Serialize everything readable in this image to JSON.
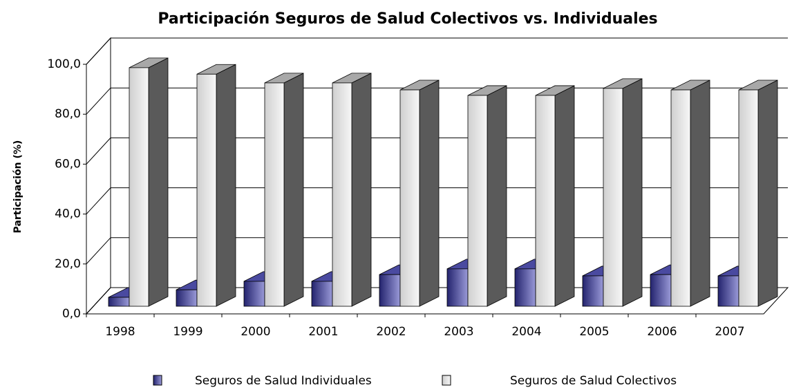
{
  "chart_data": {
    "type": "bar3d",
    "title": "Participación Seguros de Salud Colectivos vs. Individuales",
    "y_label": "Participación (%)",
    "categories": [
      "1998",
      "1999",
      "2000",
      "2001",
      "2002",
      "2003",
      "2004",
      "2005",
      "2006",
      "2007"
    ],
    "series": [
      {
        "name": "Seguros de Salud Individuales",
        "color": "#5a5ab0",
        "values": [
          3.6,
          6.6,
          10,
          10,
          12.7,
          15,
          15,
          12.2,
          12.7,
          12.2
        ]
      },
      {
        "name": "Seguros de Salud Colectivos",
        "color": "#e6e6e6",
        "values": [
          95.6,
          93,
          89.5,
          89.5,
          86.7,
          84.5,
          84.5,
          87.3,
          86.7,
          86.7
        ]
      }
    ],
    "ylim": [
      0,
      100
    ],
    "yticks": [
      {
        "value": 0,
        "label": "0,0"
      },
      {
        "value": 20,
        "label": "20,0"
      },
      {
        "value": 40,
        "label": "40,0"
      },
      {
        "value": 60,
        "label": "60,0"
      },
      {
        "value": 80,
        "label": "80,0"
      },
      {
        "value": 100,
        "label": "100,0"
      }
    ],
    "grid": true
  }
}
